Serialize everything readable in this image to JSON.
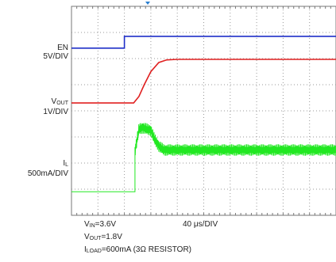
{
  "chart_data": {
    "type": "line",
    "title": "",
    "xlabel": "",
    "ylabel": "",
    "grid": true,
    "divisions": {
      "x": 10,
      "y": 8
    },
    "time_base": "40μs/DIV",
    "time_base_parts": {
      "value": "40",
      "unit": "μs/DIV"
    },
    "channels": [
      {
        "name": "EN",
        "scale": "5V/DIV",
        "color": "#1f2fc8",
        "x": [
          0,
          2.0,
          2.0,
          10
        ],
        "y": [
          6.4,
          6.4,
          6.85,
          6.85
        ]
      },
      {
        "name": "V_OUT",
        "name_main": "V",
        "name_sub": "OUT",
        "scale": "1V/DIV",
        "color": "#e02020",
        "x": [
          0,
          2.35,
          2.55,
          2.75,
          3.0,
          3.3,
          3.6,
          4.0,
          10
        ],
        "y": [
          4.3,
          4.3,
          4.55,
          5.0,
          5.5,
          5.85,
          5.95,
          5.97,
          5.97
        ]
      },
      {
        "name": "I_L",
        "name_main": "I",
        "name_sub": "L",
        "scale": "500mA/DIV",
        "color": "#22e822",
        "x": [
          0,
          2.35,
          2.4,
          2.55,
          2.7,
          2.85,
          3.0,
          3.15,
          3.3,
          3.5,
          4.0,
          10
        ],
        "y": [
          0.9,
          0.9,
          2.45,
          3.3,
          3.35,
          3.3,
          3.25,
          2.9,
          2.65,
          2.5,
          2.5,
          2.5
        ],
        "ripple_start": 2.4,
        "ripple_amplitude": 0.22
      }
    ],
    "conditions": [
      {
        "main": "V",
        "sub": "IN",
        "rest": "=3.6V"
      },
      {
        "main": "V",
        "sub": "OUT",
        "rest": "=1.8V"
      },
      {
        "main": "I",
        "sub": "LOAD",
        "rest": "=600mA (3Ω  RESISTOR)"
      }
    ]
  }
}
